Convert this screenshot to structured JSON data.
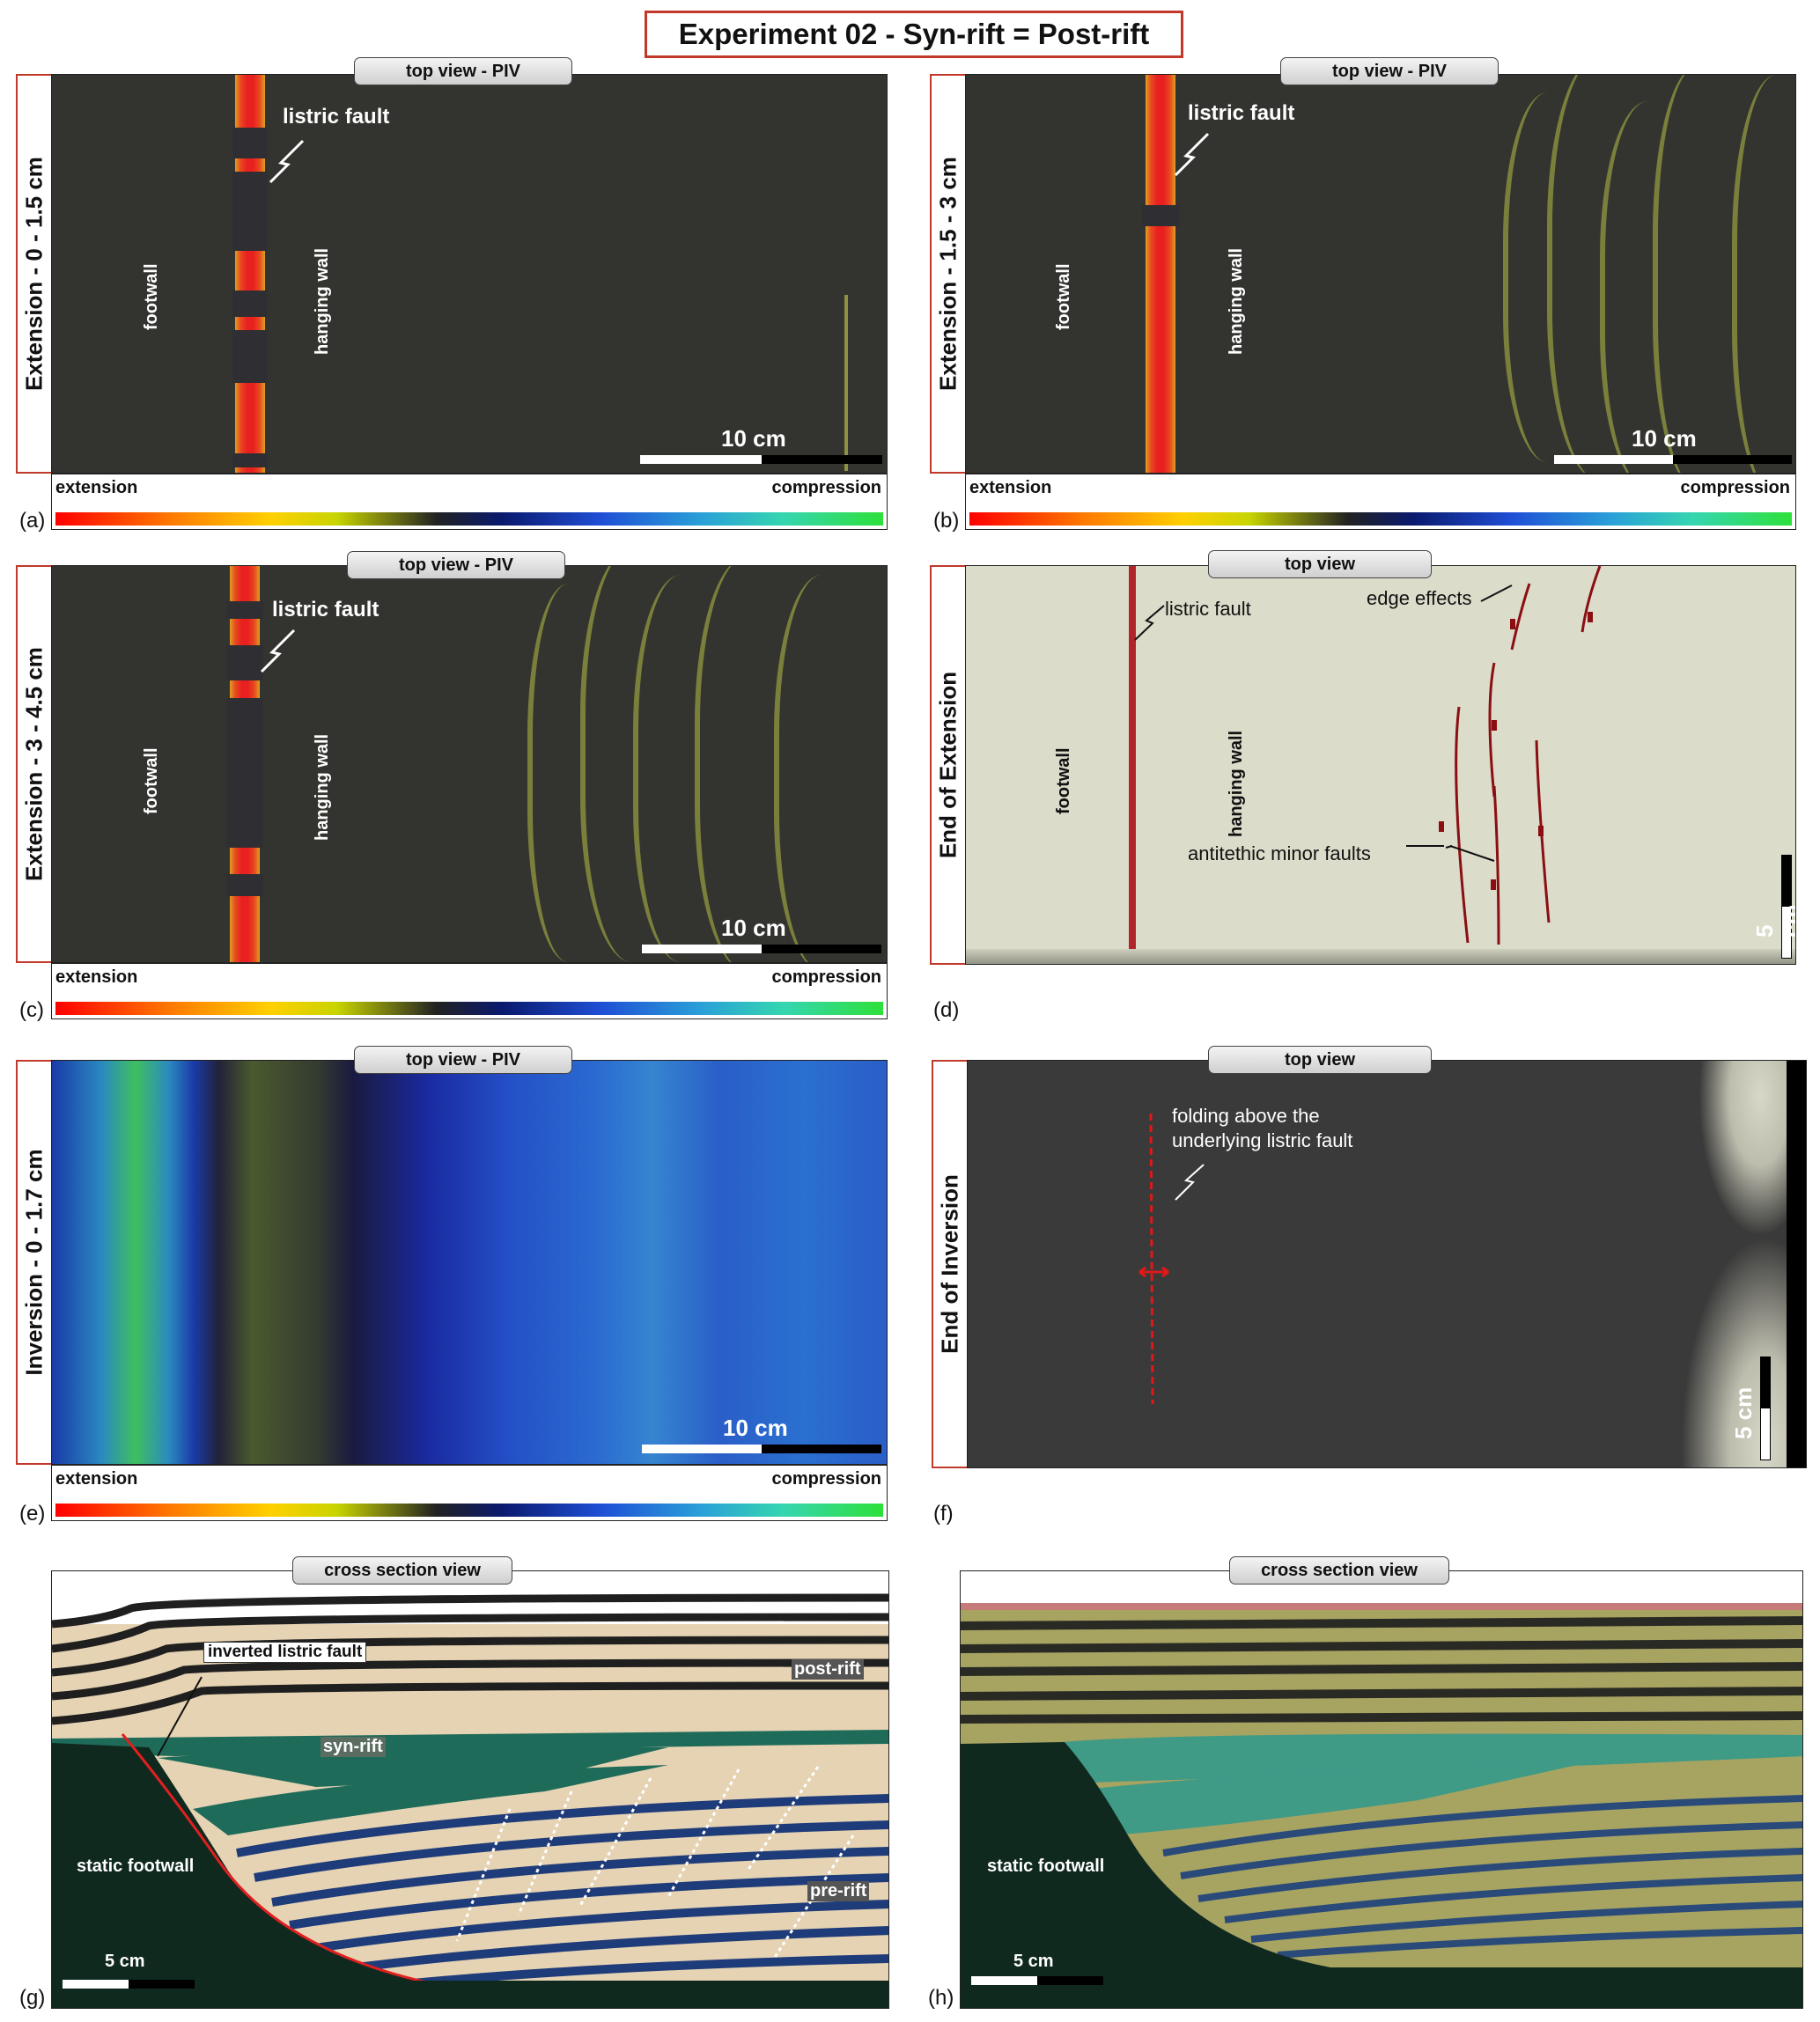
{
  "title": "Experiment 02 - Syn-rift = Post-rift",
  "colorbar": {
    "left": "extension",
    "right": "compression"
  },
  "panels": {
    "a": {
      "letter": "(a)",
      "side": "Extension - 0 - 1.5 cm",
      "tab": "top view - PIV",
      "fault": "listric fault",
      "footwall": "footwall",
      "hanging": "hanging wall",
      "scale": "10 cm"
    },
    "b": {
      "letter": "(b)",
      "side": "Extension - 1.5 - 3 cm",
      "tab": "top view - PIV",
      "fault": "listric fault",
      "footwall": "footwall",
      "hanging": "hanging wall",
      "scale": "10 cm"
    },
    "c": {
      "letter": "(c)",
      "side": "Extension - 3 - 4.5 cm",
      "tab": "top view - PIV",
      "fault": "listric fault",
      "footwall": "footwall",
      "hanging": "hanging wall",
      "scale": "10 cm"
    },
    "d": {
      "letter": "(d)",
      "side": "End of Extension",
      "tab": "top view",
      "fault": "listric fault",
      "edge": "edge effects",
      "footwall": "footwall",
      "hanging": "hanging wall",
      "minor": "antitethic minor faults",
      "scale": "5 cm"
    },
    "e": {
      "letter": "(e)",
      "side": "Inversion - 0 - 1.7 cm",
      "tab": "top view - PIV",
      "scale": "10 cm"
    },
    "f": {
      "letter": "(f)",
      "side": "End of Inversion",
      "tab": "top view",
      "fold1": "folding above the",
      "fold2": "underlying listric fault",
      "scale": "5 cm"
    },
    "g": {
      "letter": "(g)",
      "tab": "cross section view",
      "inverted": "inverted listric fault",
      "postrift": "post-rift",
      "synrift": "syn-rift",
      "prerift": "pre-rift",
      "footwall": "static footwall",
      "scale": "5 cm"
    },
    "h": {
      "letter": "(h)",
      "tab": "cross section view",
      "footwall": "static footwall",
      "scale": "5 cm"
    }
  },
  "colors": {
    "frame_red": "#c0392b",
    "footwall_green": "#10291f",
    "sand": "#e6d3b3",
    "synrift": "#1e6b5a",
    "prerift_blue": "#1f3c7a"
  }
}
